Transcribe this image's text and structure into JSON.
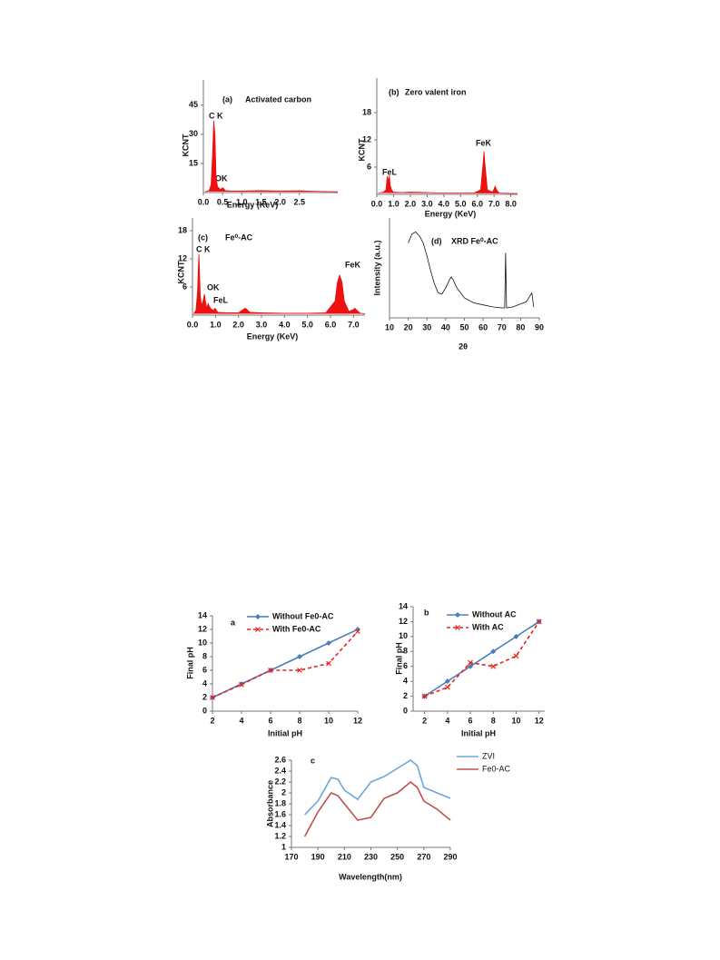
{
  "chart_data": [
    {
      "type": "area",
      "panel": "(a)",
      "title": "Activated carbon",
      "xlabel": "Energy (KeV)",
      "ylabel": "KCNT",
      "annotations": [
        "C K",
        "OK"
      ],
      "x": [
        0.05,
        0.15,
        0.2,
        0.24,
        0.27,
        0.3,
        0.33,
        0.37,
        0.45,
        0.5,
        0.53,
        0.57,
        0.7,
        1.0,
        1.5,
        2.0,
        2.5,
        3.0,
        3.5
      ],
      "series": [
        {
          "color": "#ee1111",
          "values": [
            0.5,
            1,
            4,
            20,
            37,
            30,
            8,
            3,
            1.5,
            2.5,
            2,
            1,
            0.8,
            0.8,
            1,
            0.8,
            0.9,
            0.6,
            0.4
          ]
        }
      ],
      "xlim": [
        0,
        3.5
      ],
      "ylim": [
        0,
        58
      ],
      "xticks": [
        {
          "value": 0,
          "label": "0.0"
        },
        0.5,
        {
          "value": 1,
          "label": "1.0"
        },
        1.5,
        {
          "value": 2,
          "label": "2.0"
        },
        2.5
      ],
      "yticks": [
        15,
        30,
        45
      ]
    },
    {
      "type": "area",
      "panel": "(b)",
      "title": "Zero valent iron",
      "xlabel": "Energy (KeV)",
      "ylabel": "KCNT",
      "annotations": [
        "FeL",
        "FeK"
      ],
      "x": [
        0.1,
        0.4,
        0.55,
        0.62,
        0.7,
        0.75,
        0.8,
        0.88,
        1.0,
        1.5,
        2.0,
        3.0,
        4.0,
        5.0,
        5.8,
        6.2,
        6.35,
        6.4,
        6.45,
        6.6,
        6.9,
        7.0,
        7.06,
        7.15,
        7.3,
        8.0,
        8.4
      ],
      "series": [
        {
          "color": "#ee1111",
          "values": [
            0.3,
            0.5,
            1,
            4,
            3,
            4.2,
            2,
            1,
            0.5,
            0.4,
            0.5,
            0.4,
            0.3,
            0.3,
            0.3,
            1,
            7,
            9.5,
            7,
            1,
            0.5,
            1.2,
            1.8,
            1,
            0.3,
            0.2,
            0.2
          ]
        }
      ],
      "xlim": [
        0,
        8.4
      ],
      "ylim": [
        0,
        25.6
      ],
      "xticks": [
        {
          "value": 0,
          "label": "0.0"
        },
        {
          "value": 1,
          "label": "1.0"
        },
        {
          "value": 2,
          "label": "2.0"
        },
        {
          "value": 3,
          "label": "3.0"
        },
        {
          "value": 4,
          "label": "4.0"
        },
        {
          "value": 5,
          "label": "5.0"
        },
        {
          "value": 6,
          "label": "6.0"
        },
        {
          "value": 7,
          "label": "7.0"
        },
        {
          "value": 8,
          "label": "8.0"
        }
      ],
      "yticks": [
        6,
        12,
        18
      ]
    },
    {
      "type": "area",
      "panel": "(c)",
      "title": "Fe⁰-AC",
      "xlabel": "Energy (KeV)",
      "ylabel": "KCNT",
      "annotations": [
        "C K",
        "OK",
        "FeL",
        "FeK"
      ],
      "x": [
        0.05,
        0.15,
        0.22,
        0.26,
        0.28,
        0.3,
        0.34,
        0.4,
        0.46,
        0.52,
        0.56,
        0.62,
        0.68,
        0.72,
        0.78,
        0.9,
        0.98,
        1.02,
        1.1,
        1.5,
        2.0,
        2.2,
        2.3,
        2.5,
        3.0,
        4.0,
        5.0,
        5.8,
        6.2,
        6.3,
        6.4,
        6.5,
        6.6,
        6.8,
        7.0,
        7.06,
        7.15,
        7.3,
        7.5
      ],
      "series": [
        {
          "color": "#ee1111",
          "values": [
            0.3,
            1,
            5,
            11,
            13,
            10,
            4,
            2,
            3,
            4.5,
            3,
            1.5,
            2.5,
            2,
            1.5,
            1,
            1.5,
            1.2,
            0.6,
            0.5,
            0.5,
            1.2,
            1.5,
            0.6,
            0.5,
            0.4,
            0.4,
            0.5,
            3,
            7,
            8.5,
            7,
            3,
            0.8,
            1.2,
            1.5,
            1,
            0.4,
            0.3
          ]
        }
      ],
      "xlim": [
        0,
        7.5
      ],
      "ylim": [
        0,
        20.7
      ],
      "xticks": [
        {
          "value": 0,
          "label": "0.0"
        },
        {
          "value": 1,
          "label": "1.0"
        },
        {
          "value": 2,
          "label": "2.0"
        },
        {
          "value": 3,
          "label": "3.0"
        },
        {
          "value": 4,
          "label": "4.0"
        },
        {
          "value": 5,
          "label": "5.0"
        },
        {
          "value": 6,
          "label": "6.0"
        },
        {
          "value": 7,
          "label": "7.0"
        }
      ],
      "yticks": [
        6,
        12,
        18
      ]
    },
    {
      "type": "line",
      "panel": "(d)",
      "title": "XRD Fe⁰-AC",
      "xlabel": "2θ",
      "ylabel": "Intensity (a.u.)",
      "x": [
        20,
        22,
        24,
        26,
        28,
        30,
        32,
        34,
        36,
        38,
        40,
        42,
        43,
        44,
        46,
        48,
        50,
        55,
        60,
        65,
        70,
        71.5,
        72,
        72.5,
        76,
        80,
        83,
        85,
        86,
        87
      ],
      "series": [
        {
          "color": "#111111",
          "values": [
            75,
            84,
            86,
            82,
            75,
            62,
            47,
            34,
            25,
            24,
            30,
            38,
            41,
            38,
            30,
            25,
            20,
            15,
            13,
            11,
            10,
            10,
            65,
            10,
            11,
            14,
            16,
            22,
            25,
            11
          ]
        }
      ],
      "xlim": [
        10,
        90
      ],
      "ylim": [
        0,
        100
      ],
      "xticks": [
        10,
        20,
        30,
        40,
        50,
        60,
        70,
        80,
        90
      ]
    },
    {
      "type": "line",
      "panel": "a",
      "xlabel": "Initial pH",
      "ylabel": "Final pH",
      "legend": "upper left",
      "x": [
        2,
        4,
        6,
        8,
        10,
        12
      ],
      "series": [
        {
          "name": "Without Fe0-AC",
          "color": "#4a7ebb",
          "marker": "diamond",
          "dashed": false,
          "values": [
            2,
            4,
            6,
            8,
            10,
            12
          ]
        },
        {
          "name": "With Fe0-AC",
          "color": "#e8231f",
          "marker": "x",
          "dashed": true,
          "values": [
            2,
            3.9,
            6,
            6,
            7,
            11.7
          ]
        }
      ],
      "xlim": [
        2,
        12
      ],
      "ylim": [
        0,
        14
      ],
      "xticks": [
        2,
        4,
        6,
        8,
        10,
        12
      ],
      "yticks": [
        0,
        2,
        4,
        6,
        8,
        10,
        12,
        14
      ]
    },
    {
      "type": "line",
      "panel": "b",
      "xlabel": "Initial pH",
      "ylabel": "Final pH",
      "legend": "upper left",
      "x": [
        2,
        4,
        6,
        8,
        10,
        12
      ],
      "series": [
        {
          "name": "Without AC",
          "color": "#4a7ebb",
          "marker": "diamond",
          "dashed": false,
          "values": [
            2,
            4,
            6,
            8,
            10,
            12
          ]
        },
        {
          "name": "With AC",
          "color": "#e8231f",
          "marker": "x",
          "dashed": true,
          "values": [
            2,
            3.2,
            6.5,
            6,
            7.4,
            12
          ]
        }
      ],
      "xlim": [
        1,
        12.5
      ],
      "ylim": [
        0,
        14
      ],
      "xticks": [
        2,
        4,
        6,
        8,
        10,
        12
      ],
      "yticks": [
        0,
        2,
        4,
        6,
        8,
        10,
        12,
        14
      ]
    },
    {
      "type": "line",
      "panel": "c",
      "xlabel": "Wavelength(nm)",
      "ylabel": "Absorbance",
      "legend": "right",
      "x": [
        180,
        190,
        200,
        205,
        210,
        220,
        230,
        240,
        250,
        260,
        265,
        270,
        280,
        290
      ],
      "series": [
        {
          "name": "ZVI",
          "color": "#6aa6d8",
          "values": [
            1.6,
            1.85,
            2.28,
            2.25,
            2.05,
            1.88,
            2.2,
            2.3,
            2.45,
            2.6,
            2.5,
            2.1,
            2.0,
            1.9
          ]
        },
        {
          "name": "Fe0-AC",
          "color": "#c0504d",
          "values": [
            1.2,
            1.65,
            2.0,
            1.95,
            1.8,
            1.5,
            1.55,
            1.9,
            2.0,
            2.2,
            2.1,
            1.85,
            1.7,
            1.5
          ]
        }
      ],
      "xlim": [
        170,
        290
      ],
      "ylim": [
        1,
        2.6
      ],
      "xticks": [
        170,
        190,
        210,
        230,
        250,
        270,
        290
      ],
      "yticks": [
        1,
        1.2,
        1.4,
        1.6,
        1.8,
        2,
        2.2,
        2.4,
        2.6
      ]
    }
  ]
}
